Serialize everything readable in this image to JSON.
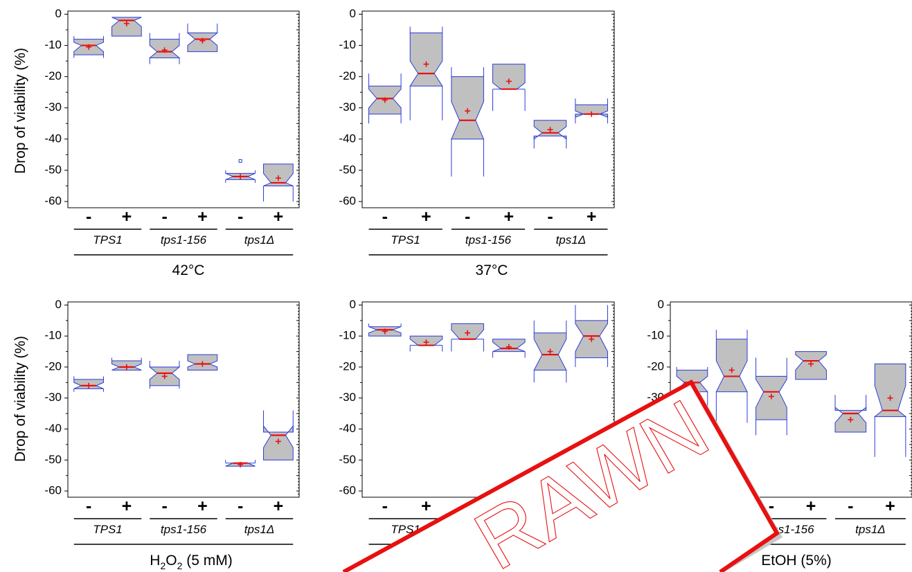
{
  "y_axis_label": "Drop of viability (%)",
  "strains": [
    "TPS1",
    "tps1-156",
    "tps1Δ"
  ],
  "signs": [
    "-",
    "+"
  ],
  "colors": {
    "box_fill": "#c0c0c0",
    "box_edge": "#2a3bd8",
    "median": "#e81010",
    "mean": "#e81010"
  },
  "watermark": {
    "text": "WITHDRAWN",
    "visible_fragment": "RAWN",
    "color": "#e81010"
  },
  "chart_data": [
    {
      "type": "box",
      "condition": "42°C",
      "ylim": [
        -62,
        1
      ],
      "yticks": [
        0,
        -10,
        -20,
        -30,
        -40,
        -50,
        -60
      ],
      "boxes": [
        {
          "strain": "TPS1",
          "sign": "-",
          "min": -14,
          "q1": -13,
          "median": -10,
          "q3": -8,
          "max": -7,
          "mean": -10.5,
          "notch_low": -12,
          "notch_high": -9
        },
        {
          "strain": "TPS1",
          "sign": "+",
          "min": -7,
          "q1": -7,
          "median": -2,
          "q3": -1,
          "max": -1,
          "mean": -3,
          "notch_low": -4,
          "notch_high": -1
        },
        {
          "strain": "tps1-156",
          "sign": "-",
          "min": -16,
          "q1": -14,
          "median": -12,
          "q3": -8,
          "max": -6,
          "mean": -11.5,
          "notch_low": -14,
          "notch_high": -10
        },
        {
          "strain": "tps1-156",
          "sign": "+",
          "min": -12,
          "q1": -12,
          "median": -8,
          "q3": -6,
          "max": -3,
          "mean": -8.5,
          "notch_low": -10,
          "notch_high": -6
        },
        {
          "strain": "tps1Δ",
          "sign": "-",
          "min": -54,
          "q1": -53,
          "median": -52,
          "q3": -51,
          "max": -50,
          "mean": -52,
          "notch_low": -53,
          "notch_high": -51,
          "outliers": [
            -47
          ]
        },
        {
          "strain": "tps1Δ",
          "sign": "+",
          "min": -60,
          "q1": -55,
          "median": -54,
          "q3": -48,
          "max": -48,
          "mean": -52.5,
          "notch_low": -55,
          "notch_high": -51
        }
      ]
    },
    {
      "type": "box",
      "condition": "37°C",
      "ylim": [
        -62,
        1
      ],
      "yticks": [
        0,
        -10,
        -20,
        -30,
        -40,
        -50,
        -60
      ],
      "boxes": [
        {
          "strain": "TPS1",
          "sign": "-",
          "min": -35,
          "q1": -32,
          "median": -27,
          "q3": -23,
          "max": -19,
          "mean": -27.5,
          "notch_low": -30,
          "notch_high": -24
        },
        {
          "strain": "TPS1",
          "sign": "+",
          "min": -34,
          "q1": -23,
          "median": -19,
          "q3": -6,
          "max": -4,
          "mean": -16,
          "notch_low": -23,
          "notch_high": -15
        },
        {
          "strain": "tps1-156",
          "sign": "-",
          "min": -52,
          "q1": -40,
          "median": -34,
          "q3": -20,
          "max": -17,
          "mean": -31,
          "notch_low": -40,
          "notch_high": -28
        },
        {
          "strain": "tps1-156",
          "sign": "+",
          "min": -31,
          "q1": -24,
          "median": -24,
          "q3": -16,
          "max": -16,
          "mean": -21.5,
          "notch_low": -24,
          "notch_high": -22
        },
        {
          "strain": "tps1Δ",
          "sign": "-",
          "min": -43,
          "q1": -39,
          "median": -38,
          "q3": -34,
          "max": -34,
          "mean": -37,
          "notch_low": -40,
          "notch_high": -36
        },
        {
          "strain": "tps1Δ",
          "sign": "+",
          "min": -35,
          "q1": -32,
          "median": -32,
          "q3": -29,
          "max": -27,
          "mean": -32,
          "notch_low": -33,
          "notch_high": -31
        }
      ]
    },
    {
      "type": "box",
      "condition": "H₂O₂ (5 mM)",
      "condition_main": "H",
      "condition_sub1": "2",
      "condition_mid": "O",
      "condition_sub2": "2",
      "condition_tail": " (5 mM)",
      "ylim": [
        -62,
        1
      ],
      "yticks": [
        0,
        -10,
        -20,
        -30,
        -40,
        -50,
        -60
      ],
      "boxes": [
        {
          "strain": "TPS1",
          "sign": "-",
          "min": -28,
          "q1": -27,
          "median": -26,
          "q3": -24,
          "max": -23,
          "mean": -26,
          "notch_low": -27,
          "notch_high": -25
        },
        {
          "strain": "TPS1",
          "sign": "+",
          "min": -21,
          "q1": -21,
          "median": -20,
          "q3": -18,
          "max": -17,
          "mean": -20,
          "notch_low": -21,
          "notch_high": -19
        },
        {
          "strain": "tps1-156",
          "sign": "-",
          "min": -27,
          "q1": -26,
          "median": -22,
          "q3": -20,
          "max": -18,
          "mean": -23,
          "notch_low": -24,
          "notch_high": -20
        },
        {
          "strain": "tps1-156",
          "sign": "+",
          "min": -21,
          "q1": -21,
          "median": -19,
          "q3": -16,
          "max": -16,
          "mean": -19,
          "notch_low": -20,
          "notch_high": -18
        },
        {
          "strain": "tps1Δ",
          "sign": "-",
          "min": -52,
          "q1": -52,
          "median": -51,
          "q3": -51,
          "max": -50,
          "mean": -51.5,
          "notch_low": -52,
          "notch_high": -51
        },
        {
          "strain": "tps1Δ",
          "sign": "+",
          "min": -50,
          "q1": -50,
          "median": -42,
          "q3": -41,
          "max": -34,
          "mean": -44,
          "notch_low": -46,
          "notch_high": -39
        }
      ]
    },
    {
      "type": "box",
      "condition": "",
      "ylim": [
        -62,
        1
      ],
      "yticks": [
        0,
        -10,
        -20,
        -30,
        -40,
        -50,
        -60
      ],
      "boxes": [
        {
          "strain": "TPS1",
          "sign": "-",
          "min": -10,
          "q1": -10,
          "median": -8,
          "q3": -7,
          "max": -6,
          "mean": -8.5,
          "notch_low": -9,
          "notch_high": -7
        },
        {
          "strain": "TPS1",
          "sign": "+",
          "min": -15,
          "q1": -13,
          "median": -13,
          "q3": -10,
          "max": -10,
          "mean": -12,
          "notch_low": -13,
          "notch_high": -11
        },
        {
          "strain": "tps1-156",
          "sign": "-",
          "min": -15,
          "q1": -11,
          "median": -11,
          "q3": -6,
          "max": -6,
          "mean": -9,
          "notch_low": -11,
          "notch_high": -8
        },
        {
          "strain": "tps1-156",
          "sign": "+",
          "min": -17,
          "q1": -15,
          "median": -14,
          "q3": -11,
          "max": -11,
          "mean": -13.5,
          "notch_low": -15,
          "notch_high": -12
        },
        {
          "strain": "tps1Δ",
          "sign": "-",
          "min": -25,
          "q1": -21,
          "median": -16,
          "q3": -9,
          "max": -5,
          "mean": -15,
          "notch_low": -21,
          "notch_high": -11
        },
        {
          "strain": "tps1Δ",
          "sign": "+",
          "min": -20,
          "q1": -17,
          "median": -10,
          "q3": -5,
          "max": 0,
          "mean": -11,
          "notch_low": -15,
          "notch_high": -6
        }
      ]
    },
    {
      "type": "box",
      "condition": "EtOH (5%)",
      "ylim": [
        -62,
        1
      ],
      "yticks": [
        0,
        -10,
        -20,
        -30,
        -40,
        -50,
        -60
      ],
      "boxes": [
        {
          "strain": "TPS1",
          "sign": "-",
          "min": -38,
          "q1": -28,
          "median": -25,
          "q3": -21,
          "max": -20,
          "mean": -25.5,
          "notch_low": -28,
          "notch_high": -23
        },
        {
          "strain": "TPS1",
          "sign": "+",
          "min": -38,
          "q1": -28,
          "median": -23,
          "q3": -11,
          "max": -8,
          "mean": -21,
          "notch_low": -28,
          "notch_high": -18
        },
        {
          "strain": "tps1-156",
          "sign": "-",
          "min": -42,
          "q1": -37,
          "median": -28,
          "q3": -23,
          "max": -17,
          "mean": -29.5,
          "notch_low": -33,
          "notch_high": -24
        },
        {
          "strain": "tps1-156",
          "sign": "+",
          "min": -24,
          "q1": -24,
          "median": -18,
          "q3": -15,
          "max": -15,
          "mean": -19,
          "notch_low": -21,
          "notch_high": -16
        },
        {
          "strain": "tps1Δ",
          "sign": "-",
          "min": -41,
          "q1": -41,
          "median": -35,
          "q3": -34,
          "max": -29,
          "mean": -37,
          "notch_low": -38,
          "notch_high": -33
        },
        {
          "strain": "tps1Δ",
          "sign": "+",
          "min": -49,
          "q1": -36,
          "median": -34,
          "q3": -19,
          "max": -19,
          "mean": -30,
          "notch_low": -36,
          "notch_high": -26
        }
      ]
    }
  ]
}
